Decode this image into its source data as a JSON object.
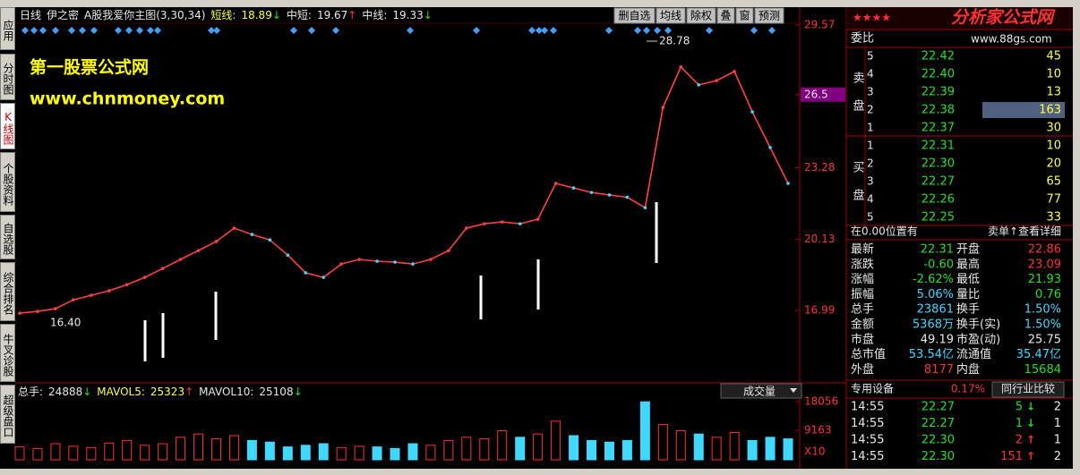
{
  "nav": [
    "应用",
    "分时图",
    "K线图",
    "个股资料",
    "自选股",
    "综合排名",
    "牛叉诊股",
    "超级盘口"
  ],
  "header": {
    "period": "日线",
    "stock": "伊之密",
    "indicator": "A股我爱你主图(3,30,34)",
    "lines": [
      {
        "label": "短线:",
        "value": "18.89",
        "arrow": "↓"
      },
      {
        "label": "中短:",
        "value": "19.67",
        "arrow": "↑"
      },
      {
        "label": "中线:",
        "value": "19.33",
        "arrow": "↓"
      }
    ]
  },
  "toolbar": [
    "删自选",
    "均线",
    "除权",
    "叠",
    "窗",
    "预测"
  ],
  "watermark": [
    "第一股票公式网",
    "www.chnmoney.com"
  ],
  "logo": {
    "stars": "★★★★",
    "name": "分析家公式网",
    "url": "www.88gs.com"
  },
  "volume_header": [
    {
      "label": "总手:",
      "value": "24888",
      "arrow": "↓"
    },
    {
      "label": "MAVOL5:",
      "value": "25323",
      "arrow": "↑"
    },
    {
      "label": "MAVOL10:",
      "value": "25108",
      "arrow": "↓"
    }
  ],
  "volume_menu": "成交量",
  "chart_data": [
    {
      "type": "line",
      "color": "#ff4040",
      "ylim": [
        13.92,
        29.96
      ],
      "yticks": [
        29.57,
        26.5,
        23.28,
        20.13,
        16.99
      ],
      "annotations": [
        "28.78",
        "16.40"
      ],
      "values": [
        16.87,
        16.95,
        17.07,
        17.46,
        17.66,
        17.86,
        18.13,
        18.45,
        18.84,
        19.24,
        19.63,
        20.03,
        20.62,
        20.34,
        20.1,
        19.43,
        18.65,
        18.45,
        19.04,
        19.24,
        19.16,
        19.12,
        19.04,
        19.24,
        19.63,
        20.62,
        20.81,
        20.89,
        20.81,
        21.01,
        22.59,
        22.39,
        22.19,
        22.08,
        21.98,
        21.52,
        25.94,
        27.72,
        26.93,
        27.12,
        27.52,
        25.74,
        24.17,
        22.59
      ]
    },
    {
      "type": "bar",
      "ylim": [
        0,
        19168
      ],
      "yticks": [
        18056,
        9163
      ],
      "unit_label": "X10",
      "series": [
        {
          "name": "成交量",
          "color": "#ff3030",
          "values": [
            4000,
            3500,
            5000,
            4200,
            3800,
            5200,
            6000,
            4500,
            5000,
            7000,
            8000,
            6500,
            7500,
            6000,
            5500,
            4000,
            4500,
            5000,
            3800,
            4200,
            4000,
            3500,
            5000,
            4500,
            6000,
            7000,
            6500,
            9000,
            7000,
            8000,
            12000,
            7500,
            6000,
            5500,
            6000,
            18000,
            11000,
            9000,
            8000,
            7000,
            8500,
            6000,
            7000,
            6500
          ]
        }
      ]
    }
  ],
  "order_book": {
    "title": "委比",
    "sell_label": "卖盘",
    "buy_label": "买盘",
    "sell": [
      [
        "5",
        "22.42",
        "45"
      ],
      [
        "4",
        "22.40",
        "10"
      ],
      [
        "3",
        "22.39",
        "13"
      ],
      [
        "2",
        "22.38",
        "163"
      ],
      [
        "1",
        "22.37",
        "30"
      ]
    ],
    "buy": [
      [
        "1",
        "22.31",
        "10"
      ],
      [
        "2",
        "22.30",
        "20"
      ],
      [
        "3",
        "22.27",
        "65"
      ],
      [
        "4",
        "22.26",
        "77"
      ],
      [
        "5",
        "22.25",
        "33"
      ]
    ]
  },
  "notice": [
    "在0.00位置有",
    "卖单↑查看详细"
  ],
  "stats": [
    [
      "最新",
      "22.31",
      "开盘",
      "22.86"
    ],
    [
      "涨跌",
      "-0.60",
      "最高",
      "23.09"
    ],
    [
      "涨幅",
      "-2.62%",
      "最低",
      "21.93"
    ],
    [
      "振幅",
      "5.06%",
      "量比",
      "0.76"
    ],
    [
      "总手",
      "23861",
      "换手",
      "1.50%"
    ],
    [
      "金额",
      "5368万",
      "换手(实)",
      "1.50%"
    ],
    [
      "市盘",
      "49.19",
      "市盈(动)",
      "25.75"
    ],
    [
      "总市值",
      "53.54亿",
      "流通值",
      "35.47亿"
    ],
    [
      "外盘",
      "8177",
      "内盘",
      "15684"
    ]
  ],
  "industry": [
    "专用设备",
    "0.17%",
    "同行业比较"
  ],
  "trades": [
    [
      "14:55",
      "22.27",
      "5",
      "↓",
      "2"
    ],
    [
      "14:55",
      "22.27",
      "1",
      "↓",
      "1"
    ],
    [
      "14:55",
      "22.30",
      "2",
      "↑",
      "1"
    ],
    [
      "14:55",
      "22.30",
      "151",
      "↑",
      "2"
    ]
  ]
}
